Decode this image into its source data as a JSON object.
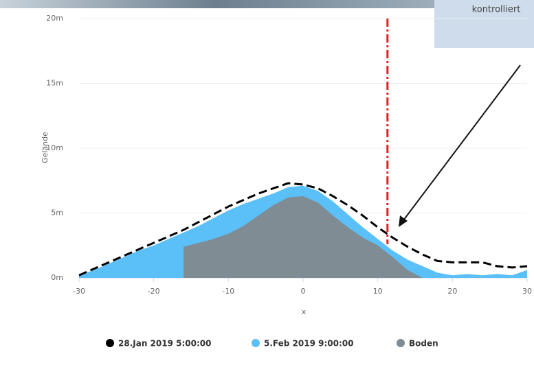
{
  "chart_data": {
    "type": "area",
    "x": [
      -30,
      -28,
      -26,
      -24,
      -22,
      -20,
      -18,
      -16,
      -14,
      -12,
      -10,
      -8,
      -6,
      -4,
      -2,
      0,
      2,
      4,
      6,
      8,
      10,
      12,
      14,
      16,
      18,
      20,
      22,
      24,
      26,
      28,
      30
    ],
    "series": [
      {
        "name": "28.Jan 2019 5:00:00",
        "color": "#000000",
        "style": "dashed-line",
        "values": [
          0.2,
          0.7,
          1.2,
          1.7,
          2.2,
          2.7,
          3.2,
          3.7,
          4.3,
          4.9,
          5.5,
          6.0,
          6.5,
          6.9,
          7.3,
          7.2,
          6.9,
          6.3,
          5.6,
          4.8,
          3.9,
          3.1,
          2.4,
          1.8,
          1.3,
          1.2,
          1.2,
          1.2,
          0.9,
          0.8,
          0.9
        ]
      },
      {
        "name": "5.Feb 2019 9:00:00",
        "color": "#5bc0f8",
        "style": "area",
        "values": [
          0.2,
          0.6,
          1.1,
          1.6,
          2.1,
          2.5,
          3.0,
          3.5,
          4.0,
          4.6,
          5.2,
          5.7,
          6.1,
          6.5,
          7.0,
          7.1,
          6.7,
          5.9,
          4.9,
          3.9,
          3.0,
          2.1,
          1.4,
          0.9,
          0.4,
          0.2,
          0.3,
          0.2,
          0.3,
          0.2,
          0.6
        ]
      },
      {
        "name": "Boden",
        "color": "#7f8c93",
        "style": "area",
        "values": [
          null,
          null,
          null,
          null,
          null,
          null,
          null,
          2.4,
          2.7,
          3.0,
          3.4,
          4.0,
          4.8,
          5.6,
          6.2,
          6.3,
          5.8,
          4.8,
          3.9,
          3.1,
          2.5,
          1.6,
          0.6,
          0,
          null,
          null,
          null,
          null,
          null,
          null,
          null
        ]
      }
    ],
    "xlim": [
      -30,
      30
    ],
    "xticks": [
      -30,
      -20,
      -10,
      0,
      10,
      20,
      30
    ],
    "ylim": [
      0,
      20
    ],
    "yticks": [
      {
        "value": 0,
        "label": "0m"
      },
      {
        "value": 5,
        "label": "5m"
      },
      {
        "value": 10,
        "label": "10m"
      },
      {
        "value": 15,
        "label": "15m"
      },
      {
        "value": 20,
        "label": "20m"
      }
    ],
    "x_label": "x",
    "y_label": "Gelände",
    "grid": true,
    "reference_line": {
      "x": 11.3,
      "top": 20,
      "bottom": 2.6,
      "color": "#e02020"
    },
    "annotation": "kontrolliert"
  }
}
